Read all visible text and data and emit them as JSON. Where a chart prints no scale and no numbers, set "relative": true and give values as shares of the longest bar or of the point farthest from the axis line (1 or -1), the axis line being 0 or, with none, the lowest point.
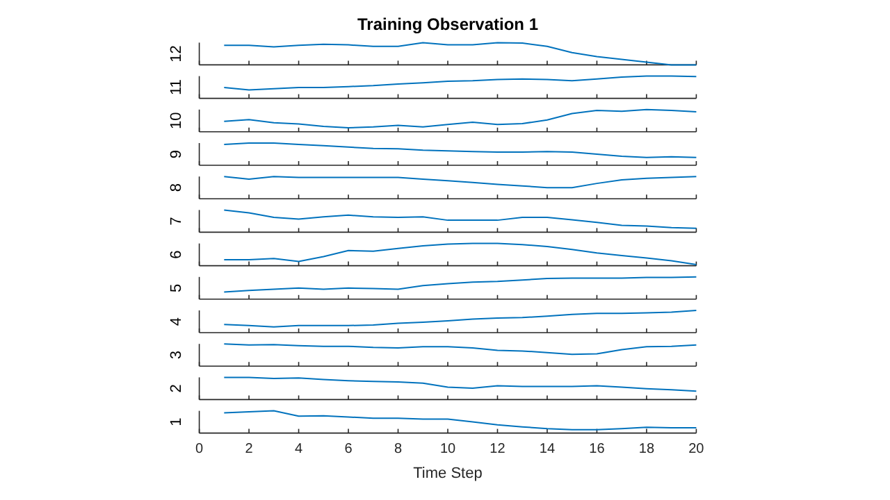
{
  "chart_data": [
    {
      "type": "line",
      "title": "Training Observation 1",
      "ylabel": "12",
      "relative": true,
      "tick_labels": false,
      "color": "#0072bd",
      "xlim": [
        0,
        20
      ],
      "xticks": [
        0,
        2,
        4,
        6,
        8,
        10,
        12,
        14,
        16,
        18,
        20
      ],
      "x": [
        1,
        2,
        3,
        4,
        5,
        6,
        7,
        8,
        9,
        10,
        11,
        12,
        13,
        14,
        15,
        16,
        17,
        18,
        19,
        20
      ],
      "values": [
        0.88,
        0.88,
        0.81,
        0.88,
        0.93,
        0.9,
        0.83,
        0.83,
        1,
        0.9,
        0.9,
        1,
        0.98,
        0.83,
        0.55,
        0.37,
        0.25,
        0.12,
        0,
        0
      ]
    },
    {
      "type": "line",
      "ylabel": "11",
      "relative": true,
      "tick_labels": false,
      "color": "#0072bd",
      "xlim": [
        0,
        20
      ],
      "xticks": [
        0,
        2,
        4,
        6,
        8,
        10,
        12,
        14,
        16,
        18,
        20
      ],
      "x": [
        1,
        2,
        3,
        4,
        5,
        6,
        7,
        8,
        9,
        10,
        11,
        12,
        13,
        14,
        15,
        16,
        17,
        18,
        19,
        20
      ],
      "values": [
        0.49,
        0.38,
        0.43,
        0.49,
        0.49,
        0.53,
        0.57,
        0.64,
        0.7,
        0.77,
        0.79,
        0.85,
        0.87,
        0.85,
        0.79,
        0.87,
        0.96,
        1,
        1,
        0.98
      ]
    },
    {
      "type": "line",
      "ylabel": "10",
      "relative": true,
      "tick_labels": false,
      "color": "#0072bd",
      "xlim": [
        0,
        20
      ],
      "xticks": [
        0,
        2,
        4,
        6,
        8,
        10,
        12,
        14,
        16,
        18,
        20
      ],
      "x": [
        1,
        2,
        3,
        4,
        5,
        6,
        7,
        8,
        9,
        10,
        11,
        12,
        13,
        14,
        15,
        16,
        17,
        18,
        19,
        20
      ],
      "values": [
        0.47,
        0.55,
        0.41,
        0.35,
        0.24,
        0.18,
        0.22,
        0.29,
        0.22,
        0.33,
        0.43,
        0.33,
        0.37,
        0.53,
        0.82,
        0.96,
        0.92,
        1,
        0.96,
        0.9
      ]
    },
    {
      "type": "line",
      "ylabel": "9",
      "relative": true,
      "tick_labels": false,
      "color": "#0072bd",
      "xlim": [
        0,
        20
      ],
      "xticks": [
        0,
        2,
        4,
        6,
        8,
        10,
        12,
        14,
        16,
        18,
        20
      ],
      "x": [
        1,
        2,
        3,
        4,
        5,
        6,
        7,
        8,
        9,
        10,
        11,
        12,
        13,
        14,
        15,
        16,
        17,
        18,
        19,
        20
      ],
      "values": [
        0.94,
        1,
        1,
        0.94,
        0.88,
        0.82,
        0.76,
        0.74,
        0.68,
        0.65,
        0.62,
        0.59,
        0.59,
        0.62,
        0.59,
        0.5,
        0.41,
        0.35,
        0.38,
        0.35
      ]
    },
    {
      "type": "line",
      "ylabel": "8",
      "relative": true,
      "tick_labels": false,
      "color": "#0072bd",
      "xlim": [
        0,
        20
      ],
      "xticks": [
        0,
        2,
        4,
        6,
        8,
        10,
        12,
        14,
        16,
        18,
        20
      ],
      "x": [
        1,
        2,
        3,
        4,
        5,
        6,
        7,
        8,
        9,
        10,
        11,
        12,
        13,
        14,
        15,
        16,
        17,
        18,
        19,
        20
      ],
      "values": [
        1,
        0.88,
        1,
        0.96,
        0.96,
        0.96,
        0.96,
        0.96,
        0.88,
        0.81,
        0.73,
        0.65,
        0.58,
        0.5,
        0.5,
        0.69,
        0.85,
        0.92,
        0.96,
        1
      ]
    },
    {
      "type": "line",
      "ylabel": "7",
      "relative": true,
      "tick_labels": false,
      "color": "#0072bd",
      "xlim": [
        0,
        20
      ],
      "xticks": [
        0,
        2,
        4,
        6,
        8,
        10,
        12,
        14,
        16,
        18,
        20
      ],
      "x": [
        1,
        2,
        3,
        4,
        5,
        6,
        7,
        8,
        9,
        10,
        11,
        12,
        13,
        14,
        15,
        16,
        17,
        18,
        19,
        20
      ],
      "values": [
        1,
        0.87,
        0.67,
        0.59,
        0.69,
        0.77,
        0.69,
        0.67,
        0.69,
        0.54,
        0.54,
        0.54,
        0.67,
        0.67,
        0.56,
        0.44,
        0.31,
        0.28,
        0.21,
        0.18
      ]
    },
    {
      "type": "line",
      "ylabel": "6",
      "relative": true,
      "tick_labels": false,
      "color": "#0072bd",
      "xlim": [
        0,
        20
      ],
      "xticks": [
        0,
        2,
        4,
        6,
        8,
        10,
        12,
        14,
        16,
        18,
        20
      ],
      "x": [
        1,
        2,
        3,
        4,
        5,
        6,
        7,
        8,
        9,
        10,
        11,
        12,
        13,
        14,
        15,
        16,
        17,
        18,
        19,
        20
      ],
      "values": [
        0.27,
        0.27,
        0.32,
        0.19,
        0.41,
        0.68,
        0.65,
        0.78,
        0.89,
        0.97,
        1,
        1,
        0.95,
        0.86,
        0.73,
        0.57,
        0.46,
        0.35,
        0.22,
        0.05
      ]
    },
    {
      "type": "line",
      "ylabel": "5",
      "relative": true,
      "tick_labels": false,
      "color": "#0072bd",
      "xlim": [
        0,
        20
      ],
      "xticks": [
        0,
        2,
        4,
        6,
        8,
        10,
        12,
        14,
        16,
        18,
        20
      ],
      "x": [
        1,
        2,
        3,
        4,
        5,
        6,
        7,
        8,
        9,
        10,
        11,
        12,
        13,
        14,
        15,
        16,
        17,
        18,
        19,
        20
      ],
      "values": [
        0.32,
        0.39,
        0.45,
        0.5,
        0.45,
        0.5,
        0.48,
        0.45,
        0.61,
        0.7,
        0.77,
        0.8,
        0.86,
        0.93,
        0.95,
        0.95,
        0.95,
        0.98,
        0.98,
        1
      ]
    },
    {
      "type": "line",
      "ylabel": "4",
      "relative": true,
      "tick_labels": false,
      "color": "#0072bd",
      "xlim": [
        0,
        20
      ],
      "xticks": [
        0,
        2,
        4,
        6,
        8,
        10,
        12,
        14,
        16,
        18,
        20
      ],
      "x": [
        1,
        2,
        3,
        4,
        5,
        6,
        7,
        8,
        9,
        10,
        11,
        12,
        13,
        14,
        15,
        16,
        17,
        18,
        19,
        20
      ],
      "values": [
        0.37,
        0.32,
        0.26,
        0.32,
        0.32,
        0.32,
        0.34,
        0.42,
        0.47,
        0.53,
        0.61,
        0.66,
        0.68,
        0.74,
        0.82,
        0.87,
        0.87,
        0.89,
        0.92,
        1
      ]
    },
    {
      "type": "line",
      "ylabel": "3",
      "relative": true,
      "tick_labels": false,
      "color": "#0072bd",
      "xlim": [
        0,
        20
      ],
      "xticks": [
        0,
        2,
        4,
        6,
        8,
        10,
        12,
        14,
        16,
        18,
        20
      ],
      "x": [
        1,
        2,
        3,
        4,
        5,
        6,
        7,
        8,
        9,
        10,
        11,
        12,
        13,
        14,
        15,
        16,
        17,
        18,
        19,
        20
      ],
      "values": [
        1,
        0.95,
        0.97,
        0.92,
        0.89,
        0.89,
        0.84,
        0.82,
        0.87,
        0.87,
        0.82,
        0.71,
        0.68,
        0.61,
        0.53,
        0.55,
        0.74,
        0.87,
        0.89,
        0.95
      ]
    },
    {
      "type": "line",
      "ylabel": "2",
      "relative": true,
      "tick_labels": false,
      "color": "#0072bd",
      "xlim": [
        0,
        20
      ],
      "xticks": [
        0,
        2,
        4,
        6,
        8,
        10,
        12,
        14,
        16,
        18,
        20
      ],
      "x": [
        1,
        2,
        3,
        4,
        5,
        6,
        7,
        8,
        9,
        10,
        11,
        12,
        13,
        14,
        15,
        16,
        17,
        18,
        19,
        20
      ],
      "values": [
        1,
        1,
        0.95,
        0.97,
        0.9,
        0.85,
        0.82,
        0.79,
        0.74,
        0.56,
        0.51,
        0.62,
        0.59,
        0.59,
        0.59,
        0.62,
        0.56,
        0.49,
        0.44,
        0.38
      ]
    },
    {
      "type": "line",
      "ylabel": "1",
      "xlabel": "Time Step",
      "relative": true,
      "tick_labels": "x",
      "color": "#0072bd",
      "xlim": [
        0,
        20
      ],
      "xticks": [
        0,
        2,
        4,
        6,
        8,
        10,
        12,
        14,
        16,
        18,
        20
      ],
      "x": [
        1,
        2,
        3,
        4,
        5,
        6,
        7,
        8,
        9,
        10,
        11,
        12,
        13,
        14,
        15,
        16,
        17,
        18,
        19,
        20
      ],
      "values": [
        0.91,
        0.96,
        1,
        0.76,
        0.78,
        0.72,
        0.67,
        0.67,
        0.63,
        0.63,
        0.5,
        0.37,
        0.28,
        0.2,
        0.15,
        0.15,
        0.2,
        0.26,
        0.24,
        0.24
      ]
    }
  ]
}
